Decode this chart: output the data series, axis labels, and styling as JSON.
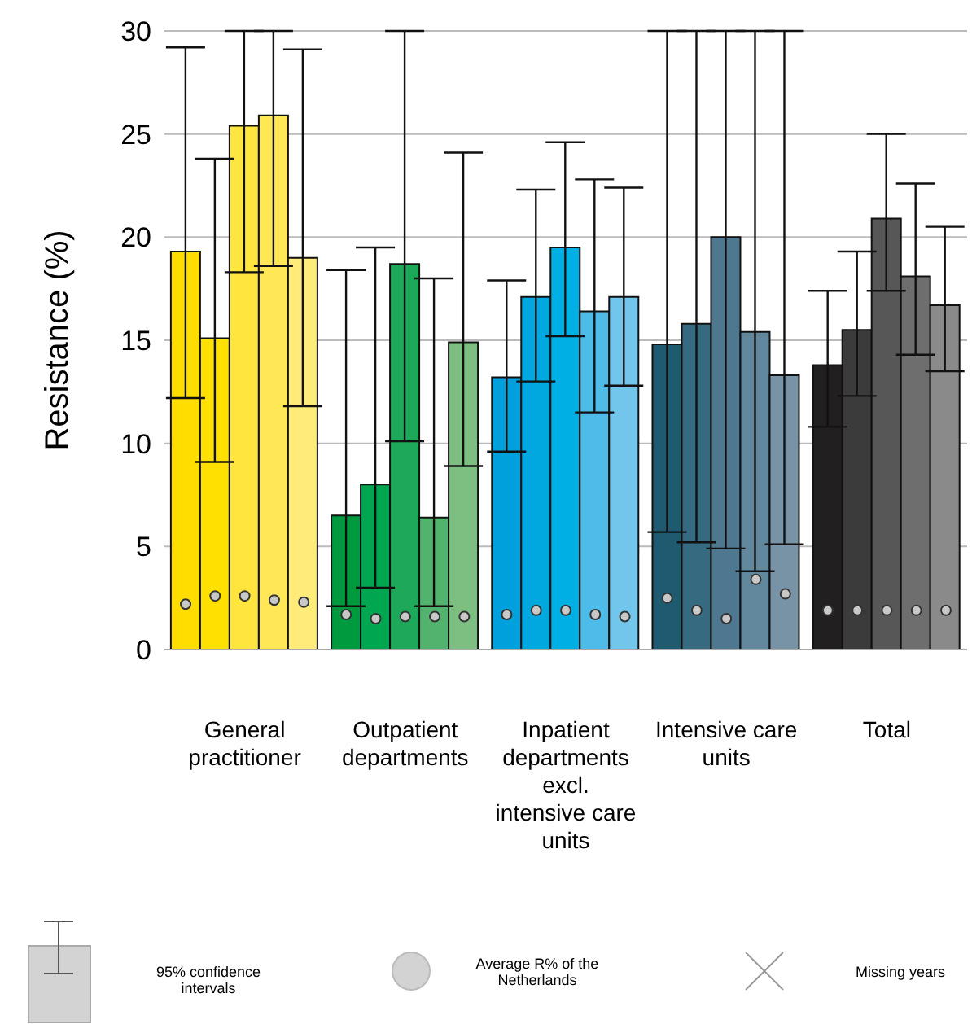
{
  "chart_data": {
    "type": "bar",
    "ylabel": "Resistance (%)",
    "categories": [
      "General practitioner",
      "Outpatient departments",
      "Inpatient departments excl. intensive care units",
      "Intensive care units",
      "Total"
    ],
    "series": [
      {
        "colors": [
          "#ffdd00",
          "#009a3e",
          "#00a0dc",
          "#1e5a70",
          "#221f20"
        ],
        "values": [
          19.3,
          6.5,
          13.2,
          14.8,
          13.8
        ],
        "errors": [
          [
            12.2,
            29.2
          ],
          [
            2.1,
            18.4
          ],
          [
            9.6,
            17.9
          ],
          [
            5.7,
            30
          ],
          [
            10.8,
            17.4
          ]
        ]
      },
      {
        "colors": [
          "#ffe000",
          "#00a650",
          "#00a8e0",
          "#356a80",
          "#3c3b3b"
        ],
        "values": [
          15.1,
          8.0,
          17.1,
          15.8,
          15.5
        ],
        "errors": [
          [
            9.1,
            23.8
          ],
          [
            3.0,
            19.5
          ],
          [
            13.0,
            22.3
          ],
          [
            5.2,
            30
          ],
          [
            12.3,
            19.3
          ]
        ]
      },
      {
        "colors": [
          "#ffe53d",
          "#1ea85a",
          "#00b0e4",
          "#4e7890",
          "#575757"
        ],
        "values": [
          25.4,
          18.7,
          19.5,
          20.0,
          20.9
        ],
        "errors": [
          [
            18.3,
            30
          ],
          [
            10.1,
            30
          ],
          [
            15.2,
            24.6
          ],
          [
            4.9,
            30
          ],
          [
            17.4,
            25.0
          ]
        ]
      },
      {
        "colors": [
          "#ffe756",
          "#52b36e",
          "#4ebce8",
          "#62889e",
          "#6e6e6e"
        ],
        "values": [
          25.9,
          6.4,
          16.4,
          15.4,
          18.1
        ],
        "errors": [
          [
            18.6,
            30
          ],
          [
            2.1,
            18.0
          ],
          [
            11.5,
            22.8
          ],
          [
            3.8,
            30
          ],
          [
            14.3,
            22.6
          ]
        ]
      },
      {
        "colors": [
          "#ffeb7a",
          "#7dbf80",
          "#72c6ec",
          "#7892a6",
          "#8a8a8a"
        ],
        "values": [
          19.0,
          14.9,
          17.1,
          13.3,
          16.7
        ],
        "errors": [
          [
            11.8,
            29.1
          ],
          [
            8.9,
            24.1
          ],
          [
            12.8,
            22.4
          ],
          [
            5.1,
            30
          ],
          [
            13.5,
            20.5
          ]
        ]
      },
      {
        "type": "scatter",
        "color": "#c8c8c8",
        "x": [
          "General practitioner",
          "Outpatient departments",
          "Inpatient departments excl. intensive care units",
          "Intensive care units",
          "Total"
        ],
        "values": [
          2.2,
          1.7,
          1.7,
          2.5,
          1.9
        ]
      },
      {
        "type": "scatter",
        "color": "#c8c8c8",
        "x": [
          "General practitioner",
          "Outpatient departments",
          "Inpatient departments excl. intensive care units",
          "Intensive care units",
          "Total"
        ],
        "values": [
          2.6,
          1.5,
          1.9,
          1.9,
          1.9
        ]
      },
      {
        "type": "scatter",
        "color": "#c8c8c8",
        "x": [
          "General practitioner",
          "Outpatient departments",
          "Inpatient departments excl. intensive care units",
          "Intensive care units",
          "Total"
        ],
        "values": [
          2.6,
          1.6,
          1.9,
          1.5,
          1.9
        ]
      },
      {
        "type": "scatter",
        "color": "#c8c8c8",
        "x": [
          "General practitioner",
          "Outpatient departments",
          "Inpatient departments excl. intensive care units",
          "Intensive care units",
          "Total"
        ],
        "values": [
          2.4,
          1.6,
          1.7,
          3.4,
          1.9
        ]
      },
      {
        "type": "scatter",
        "color": "#c8c8c8",
        "x": [
          "General practitioner",
          "Outpatient departments",
          "Inpatient departments excl. intensive care units",
          "Intensive care units",
          "Total"
        ],
        "values": [
          2.3,
          1.6,
          1.6,
          2.7,
          1.9
        ]
      }
    ],
    "ylim": [
      0,
      30
    ],
    "yticks": [
      0,
      5,
      10,
      15,
      20,
      25,
      30
    ],
    "grid": "y",
    "annotations": [
      "95% confidence intervals",
      "Average R% of the Netherlands",
      "Missing years"
    ]
  }
}
